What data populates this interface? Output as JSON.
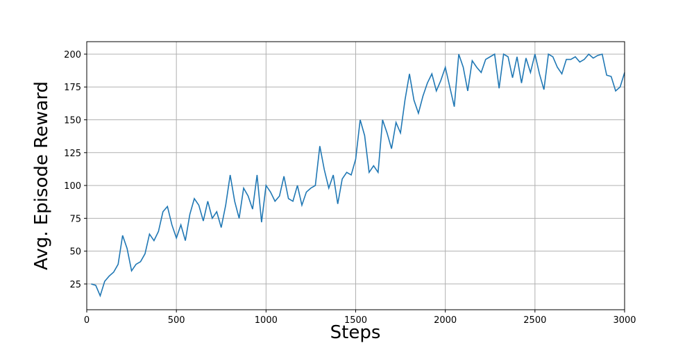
{
  "chart_data": {
    "type": "line",
    "x_label": "Steps",
    "y_label": "Avg. Episode Reward",
    "x": [
      25,
      50,
      75,
      100,
      125,
      150,
      175,
      200,
      225,
      250,
      275,
      300,
      325,
      350,
      375,
      400,
      425,
      450,
      475,
      500,
      525,
      550,
      575,
      600,
      625,
      650,
      675,
      700,
      725,
      750,
      775,
      800,
      825,
      850,
      875,
      900,
      925,
      950,
      975,
      1000,
      1025,
      1050,
      1075,
      1100,
      1125,
      1150,
      1175,
      1200,
      1225,
      1250,
      1275,
      1300,
      1325,
      1350,
      1375,
      1400,
      1425,
      1450,
      1475,
      1500,
      1525,
      1550,
      1575,
      1600,
      1625,
      1650,
      1675,
      1700,
      1725,
      1750,
      1775,
      1800,
      1825,
      1850,
      1875,
      1900,
      1925,
      1950,
      1975,
      2000,
      2025,
      2050,
      2075,
      2100,
      2125,
      2150,
      2175,
      2200,
      2225,
      2250,
      2275,
      2300,
      2325,
      2350,
      2375,
      2400,
      2425,
      2450,
      2475,
      2500,
      2525,
      2550,
      2575,
      2600,
      2625,
      2650,
      2675,
      2700,
      2725,
      2750,
      2775,
      2800,
      2825,
      2850,
      2875,
      2900,
      2925,
      2950,
      2975,
      3000
    ],
    "series": [
      {
        "color": "#1f77b4",
        "values": [
          25,
          24,
          16,
          27,
          31,
          34,
          40,
          62,
          52,
          35,
          40,
          42,
          48,
          63,
          58,
          65,
          80,
          84,
          70,
          60,
          70,
          58,
          78,
          90,
          85,
          73,
          88,
          75,
          80,
          68,
          85,
          108,
          88,
          75,
          98,
          92,
          82,
          108,
          72,
          100,
          95,
          88,
          92,
          107,
          90,
          88,
          100,
          85,
          95,
          98,
          100,
          130,
          112,
          98,
          108,
          86,
          105,
          110,
          108,
          120,
          150,
          138,
          110,
          115,
          110,
          150,
          140,
          128,
          148,
          140,
          165,
          185,
          165,
          155,
          168,
          178,
          185,
          172,
          180,
          190,
          175,
          160,
          200,
          190,
          172,
          195,
          190,
          186,
          196,
          198,
          200,
          174,
          200,
          198,
          182,
          198,
          178,
          197,
          186,
          200,
          185,
          173,
          200,
          198,
          190,
          185,
          196,
          196,
          198,
          194,
          196,
          200,
          197,
          199,
          200,
          184,
          183,
          172,
          175,
          186
        ]
      }
    ],
    "xlim": [
      0,
      3000
    ],
    "ylim": [
      5.4,
      209.5
    ],
    "xticks": [
      0,
      500,
      1000,
      1500,
      2000,
      2500,
      3000
    ],
    "yticks": [
      25,
      50,
      75,
      100,
      125,
      150,
      175,
      200
    ],
    "grid": true
  }
}
